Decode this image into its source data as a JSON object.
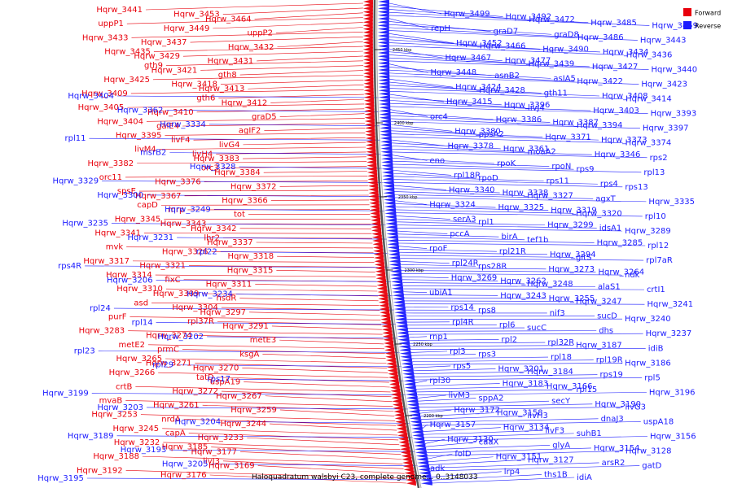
{
  "caption": {
    "genome": "Haloquadratum walsbyi C23, complete genome...",
    "position": "0..3148033"
  },
  "legend": [
    {
      "label": "Forward",
      "color": "#e8000b"
    },
    {
      "label": "Reverse",
      "color": "#1a1aff"
    }
  ],
  "colors": {
    "forward": "#e8000b",
    "reverse": "#1a1aff",
    "backbone": "#555555"
  },
  "backbone_ticks": [
    "2450 kbp",
    "2400 kbp",
    "2350 kbp",
    "2300 kbp",
    "2250 kbp",
    "2200 kbp"
  ],
  "forward_genes": [
    "Hqrw_3441",
    "Hqrw_3453",
    "Hqrw_3464",
    "uppP1",
    "Hqrw_3449",
    "uppP2",
    "Hqrw_3433",
    "Hqrw_3437",
    "Hqrw_3432",
    "Hqrw_3435",
    "Hqrw_3429",
    "Hqrw_3431",
    "gth9",
    "Hqrw_3421",
    "gth8",
    "Hqrw_3425",
    "Hqrw_3418",
    "Hqrw_3413",
    "Hqrw_3409",
    "gth6",
    "Hqrw_3412",
    "Hqrw_3405",
    "Hqrw_3410",
    "graD5",
    "Hqrw_3404",
    "galE4",
    "agIF2",
    "Hqrw_3395",
    "livF4",
    "livG4",
    "livM4",
    "livH4",
    "Hqrw_3383",
    "Hqrw_3382",
    "orc3",
    "Hqrw_3384",
    "orc11",
    "Hqrw_3376",
    "Hqrw_3372",
    "spsE",
    "Hqrw_3367",
    "Hqrw_3366",
    "capD",
    "mrp",
    "tot",
    "Hqrw_3345",
    "Hqrw_3343",
    "Hqrw_3342",
    "Hqrw_3341",
    "lhr2",
    "Hqrw_3337",
    "mvk",
    "Hqrw_3326",
    "Hqrw_3318",
    "Hqrw_3317",
    "Hqrw_3321",
    "Hqrw_3315",
    "Hqrw_3314",
    "fixC",
    "Hqrw_3311",
    "Hqrw_3310",
    "Hqrw_3309",
    "hsdR",
    "asd",
    "Hqrw_3304",
    "Hqrw_3297",
    "purF",
    "rpl37R",
    "Hqrw_3291",
    "Hqrw_3283",
    "Hqrw_3274",
    "metE3",
    "metE2",
    "prmC",
    "ksgA",
    "Hqrw_3265",
    "Hqrw_3271",
    "Hqrw_3270",
    "Hqrw_3266",
    "tatD",
    "uspA19",
    "crtB",
    "Hqrw_3272",
    "Hqrw_3267",
    "mvaB",
    "Hqrw_3261",
    "Hqrw_3259",
    "Hqrw_3253",
    "nrdA",
    "Hqrw_3244",
    "Hqrw_3245",
    "capA",
    "Hqrw_3233",
    "Hqrw_3232",
    "Hqrw_3185",
    "Hqrw_3177",
    "Hqrw_3188",
    "livJ3",
    "Hqrw_3169",
    "Hqrw_3192",
    "Hqrw_3176"
  ],
  "reverse_genes": [
    "Hqrw_3499",
    "Hqrw_3492",
    "Hqrw_3472",
    "Hqrw_3485",
    "Hqrw_3459",
    "repH",
    "graD7",
    "graD8",
    "Hqrw_3486",
    "Hqrw_3443",
    "Hqrw_3452",
    "Hqrw_3466",
    "Hqrw_3490",
    "Hqrw_3434",
    "Hqrw_3436",
    "Hqrw_3467",
    "Hqrw_3477",
    "Hqrw_3439",
    "Hqrw_3427",
    "Hqrw_3440",
    "Hqrw_3448",
    "asnB2",
    "asIA5",
    "Hqrw_3422",
    "Hqrw_3423",
    "Hqrw_3424",
    "Hqrw_3428",
    "gth11",
    "Hqrw_3408",
    "Hqrw_3414",
    "Hqrw_3415",
    "Hqrw_3396",
    "livJ4",
    "Hqrw_3403",
    "Hqrw_3393",
    "orc4",
    "Hqrw_3386",
    "Hqrw_3387",
    "Hqrw_3394",
    "Hqrw_3397",
    "Hqrw_3380",
    "ppsA2",
    "Hqrw_3371",
    "Hqrw_3373",
    "Hqrw_3374",
    "Hqrw_3378",
    "Hqrw_3361",
    "moaA2",
    "Hqrw_3346",
    "rps2",
    "eno",
    "rpoK",
    "rpoN",
    "rps9",
    "rpl13",
    "rpl18R",
    "rpoD",
    "rps11",
    "rps4",
    "rps13",
    "Hqrw_3340",
    "Hqrw_3338",
    "Hqrw_3327",
    "agxT",
    "Hqrw_3335",
    "Hqrw_3324",
    "Hqrw_3325",
    "Hqrw_3319",
    "Hqrw_3320",
    "rpl10",
    "serA3",
    "rpl1",
    "Hqrw_3299",
    "idsA1",
    "Hqrw_3289",
    "pccA",
    "birA",
    "tef1b",
    "Hqrw_3285",
    "rpl12",
    "rpoF",
    "rpl21R",
    "Hqrw_3294",
    "gltS",
    "rpl7aR",
    "rpl24R",
    "rps28R",
    "Hqrw_3273",
    "Hqrw_3264",
    "ndk",
    "Hqrw_3269",
    "Hqrw_3262",
    "Hqrw_3248",
    "alaS1",
    "crtI1",
    "ubiA1",
    "Hqrw_3243",
    "Hqrw_3255",
    "Hqrw_3247",
    "Hqrw_3241",
    "rps14",
    "rps8",
    "nif3",
    "sucD",
    "Hqrw_3240",
    "rpl4R",
    "rpl6",
    "sucC",
    "dhs",
    "Hqrw_3237",
    "rnp1",
    "rpl2",
    "rpl32R",
    "Hqrw_3187",
    "idiB",
    "rpl3",
    "rps3",
    "rpl18",
    "rpl19R",
    "Hqrw_3186",
    "rps5",
    "Hqrw_3201",
    "Hqrw_3184",
    "rps19",
    "rpl5",
    "rpl30",
    "Hqrw_3183",
    "Hqrw_3166",
    "rpl15",
    "Hqrw_3196",
    "livM3",
    "sppA2",
    "secY",
    "Hqrw_3190",
    "livG3",
    "Hqrw_3172",
    "Hqrw_3158",
    "livH3",
    "dnaJ3",
    "uspA18",
    "Hqrw_3157",
    "Hqrw_3134",
    "livF3",
    "suhB1",
    "Hqrw_3156",
    "Hqrw_3130",
    "caaX",
    "glyA",
    "Hqrw_3154",
    "Hqrw_3128",
    "folD",
    "Hqrw_3151",
    "Hqrw_3127",
    "arsR2",
    "gatD",
    "adk",
    "lrp4",
    "ths1B",
    "idiA"
  ],
  "left_blue_genes": [
    "Hqrw_3404",
    "Hqrw_3362",
    "Hqrw_3334",
    "rpl11",
    "msrB2",
    "Hqrw_3328",
    "Hqrw_3329",
    "Hqrw_3300",
    "Hqrw_3249",
    "Hqrw_3235",
    "Hqrw_3231",
    "rpl22",
    "rps4R",
    "Hqrw_3206",
    "Hqrw_3234",
    "rpl24",
    "rpl14",
    "Hqrw_3202",
    "rpl23",
    "rpl29",
    "rps17",
    "Hqrw_3199",
    "Hqrw_3203",
    "Hqrw_3204",
    "Hqrw_3189",
    "Hqrw_3193",
    "Hqrw_3205",
    "Hqrw_3195"
  ]
}
